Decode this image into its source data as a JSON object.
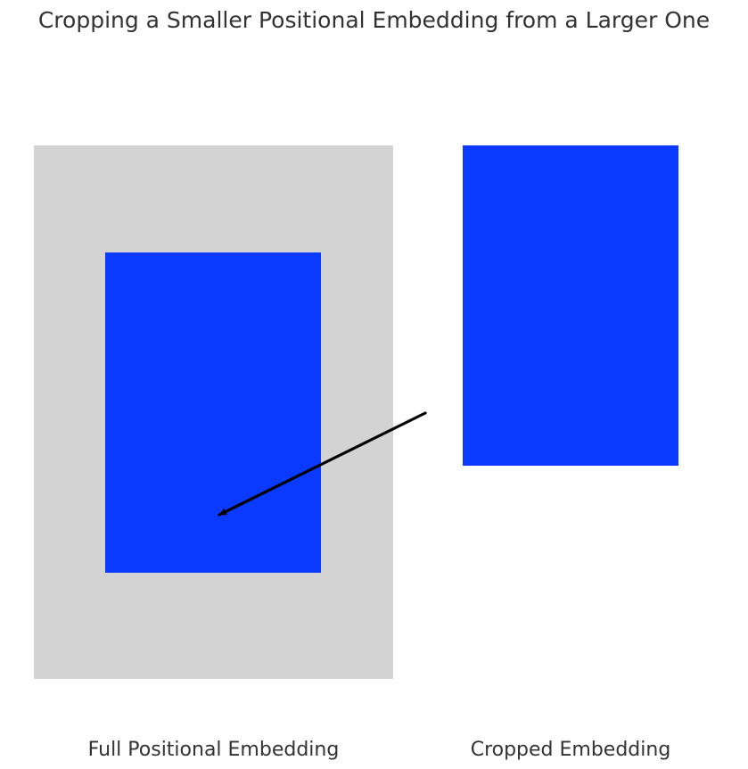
{
  "title": "Cropping a Smaller Positional Embedding from a Larger One",
  "full_embedding": {
    "label": "Full Positional Embedding",
    "fill": "#d3d3d3"
  },
  "crop_region": {
    "fill": "#0a3aff"
  },
  "cropped_embedding": {
    "label": "Cropped Embedding",
    "fill": "#0a3aff"
  },
  "arrow": {
    "color": "#000000",
    "from": "cropped-embedding",
    "to": "crop-region"
  }
}
